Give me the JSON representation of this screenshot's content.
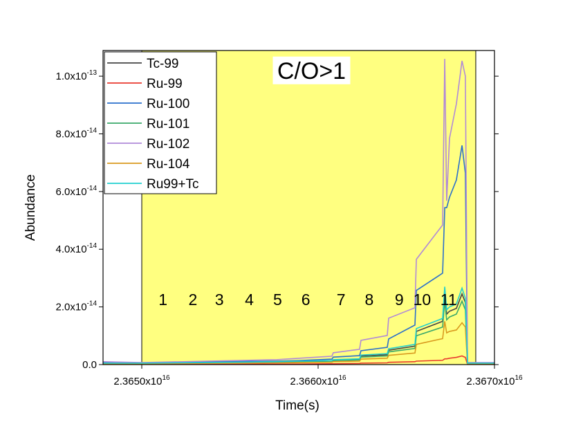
{
  "chart_data": {
    "type": "line",
    "x_label": "Time(s)",
    "y_label": "Abundance",
    "xlim": [
      2.3647804e+16,
      2.367e+16
    ],
    "ylim": [
      0,
      1.089e-13
    ],
    "xticks": [
      {
        "value": 2.365e+16,
        "label": "2.3650x10",
        "sup": "16"
      },
      {
        "value": 2.366e+16,
        "label": "2.3660x10",
        "sup": "16"
      },
      {
        "value": 2.367e+16,
        "label": "2.3670x10",
        "sup": "16"
      }
    ],
    "yticks": [
      {
        "value": 0,
        "label": "0.0"
      },
      {
        "value": 2e-14,
        "label": "2.0x10",
        "sup": "-14"
      },
      {
        "value": 4e-14,
        "label": "4.0x10",
        "sup": "-14"
      },
      {
        "value": 6e-14,
        "label": "6.0x10",
        "sup": "-14"
      },
      {
        "value": 8e-14,
        "label": "8.0x10",
        "sup": "-14"
      },
      {
        "value": 1e-13,
        "label": "1.0x10",
        "sup": "-13"
      }
    ],
    "shaded_region": {
      "x": [
        2.365e+16,
        2.366894e+16
      ],
      "color": "#ffff80"
    },
    "legend_position": "upper left",
    "x": [
      2.3647804e+16,
      2.365e+16,
      2.365373e+16,
      2.365765e+16,
      2.365894e+16,
      2.366078e+16,
      2.366086e+16,
      2.366235e+16,
      2.366243e+16,
      2.366392e+16,
      2.3664e+16,
      2.366549e+16,
      2.366557e+16,
      2.366706e+16,
      2.366718e+16,
      2.366729e+16,
      2.366745e+16,
      2.366784e+16,
      2.366816e+16,
      2.366835e+16,
      2.366847e+16,
      2.367e+16
    ],
    "series": [
      {
        "name": "Tc-99",
        "color": "#444444",
        "values": [
          4e-16,
          4e-16,
          6e-16,
          9e-16,
          1.1e-15,
          1.3e-15,
          1.5e-15,
          1.8e-15,
          3e-15,
          3.4e-15,
          5e-15,
          6.4e-15,
          1.15e-14,
          1.5e-14,
          2.5e-14,
          1.75e-14,
          1.85e-14,
          1.95e-14,
          2.45e-14,
          2.15e-14,
          4e-16,
          4e-16
        ]
      },
      {
        "name": "Ru-99",
        "color": "#e8382e",
        "values": [
          1e-16,
          1e-16,
          1e-16,
          2e-16,
          2e-16,
          3e-16,
          3e-16,
          4e-16,
          5e-16,
          6e-16,
          8e-16,
          1e-15,
          1.2e-15,
          1.5e-15,
          2e-15,
          2e-15,
          2.2e-15,
          2.5e-15,
          3e-15,
          2.5e-15,
          1e-16,
          1e-16
        ]
      },
      {
        "name": "Ru-100",
        "color": "#2a6fcb",
        "values": [
          7e-16,
          5e-16,
          1e-15,
          1.2e-15,
          1.4e-15,
          1.9e-15,
          2.6e-15,
          3.1e-15,
          4.8e-15,
          6e-15,
          8.9e-15,
          1.37e-14,
          2.57e-14,
          3.17e-14,
          5.44e-14,
          5.44e-14,
          5.8e-14,
          6.4e-14,
          7.6e-14,
          6.64e-14,
          5e-16,
          5e-16
        ]
      },
      {
        "name": "Ru-101",
        "color": "#3aa86a",
        "values": [
          4e-16,
          4e-16,
          6e-16,
          8e-16,
          1e-15,
          1.2e-15,
          1.4e-15,
          1.6e-15,
          2.6e-15,
          3e-15,
          4.4e-15,
          5.6e-15,
          1e-14,
          1.3e-14,
          2.2e-14,
          1.55e-14,
          1.65e-14,
          1.75e-14,
          2.2e-14,
          1.9e-14,
          4e-16,
          4e-16
        ]
      },
      {
        "name": "Ru-102",
        "color": "#b089d8",
        "values": [
          1e-15,
          7e-16,
          1.2e-15,
          1.7e-15,
          2.2e-15,
          2.9e-15,
          4.1e-15,
          5.3e-15,
          8.4e-15,
          1.01e-14,
          1.61e-14,
          1.97e-14,
          3.65e-14,
          4.84e-14,
          1.06e-13,
          5.68e-14,
          7.84e-14,
          9.04e-14,
          1.053e-13,
          1e-13,
          7e-16,
          7e-16
        ]
      },
      {
        "name": "Ru-104",
        "color": "#d99a1e",
        "values": [
          3e-16,
          3e-16,
          4e-16,
          6e-16,
          7e-16,
          8e-16,
          1e-15,
          1.2e-15,
          1.9e-15,
          2.2e-15,
          3.2e-15,
          4e-15,
          7e-15,
          9e-15,
          1.5e-14,
          1.1e-14,
          1.15e-14,
          1.2e-14,
          1.45e-14,
          1.3e-14,
          3e-16,
          3e-16
        ]
      },
      {
        "name": "Ru99+Tc",
        "color": "#1fcfcf",
        "values": [
          5e-16,
          5e-16,
          7e-16,
          1e-15,
          1.2e-15,
          1.4e-15,
          1.7e-15,
          2e-15,
          3.3e-15,
          3.8e-15,
          5.5e-15,
          7e-15,
          1.25e-14,
          1.6e-14,
          2.7e-14,
          1.9e-14,
          2e-14,
          2.1e-14,
          2.65e-14,
          2.3e-14,
          5e-16,
          5e-16
        ]
      }
    ],
    "annotations": [
      {
        "text": "C/O>1",
        "x": 2.3659627e+16,
        "y": 1.02e-13,
        "boxed": true
      },
      {
        "text": "1",
        "x": 2.36512e+16,
        "y": 2.25e-14
      },
      {
        "text": "2",
        "x": 2.36529e+16,
        "y": 2.25e-14
      },
      {
        "text": "3",
        "x": 2.36544e+16,
        "y": 2.25e-14
      },
      {
        "text": "4",
        "x": 2.36561e+16,
        "y": 2.25e-14
      },
      {
        "text": "5",
        "x": 2.36577e+16,
        "y": 2.25e-14
      },
      {
        "text": "6",
        "x": 2.36593e+16,
        "y": 2.25e-14
      },
      {
        "text": "7",
        "x": 2.36613e+16,
        "y": 2.25e-14
      },
      {
        "text": "8",
        "x": 2.36629e+16,
        "y": 2.25e-14
      },
      {
        "text": "9",
        "x": 2.36646e+16,
        "y": 2.25e-14
      },
      {
        "text": "10",
        "x": 2.36659e+16,
        "y": 2.25e-14
      },
      {
        "text": "11",
        "x": 2.36674e+16,
        "y": 2.25e-14
      }
    ]
  }
}
